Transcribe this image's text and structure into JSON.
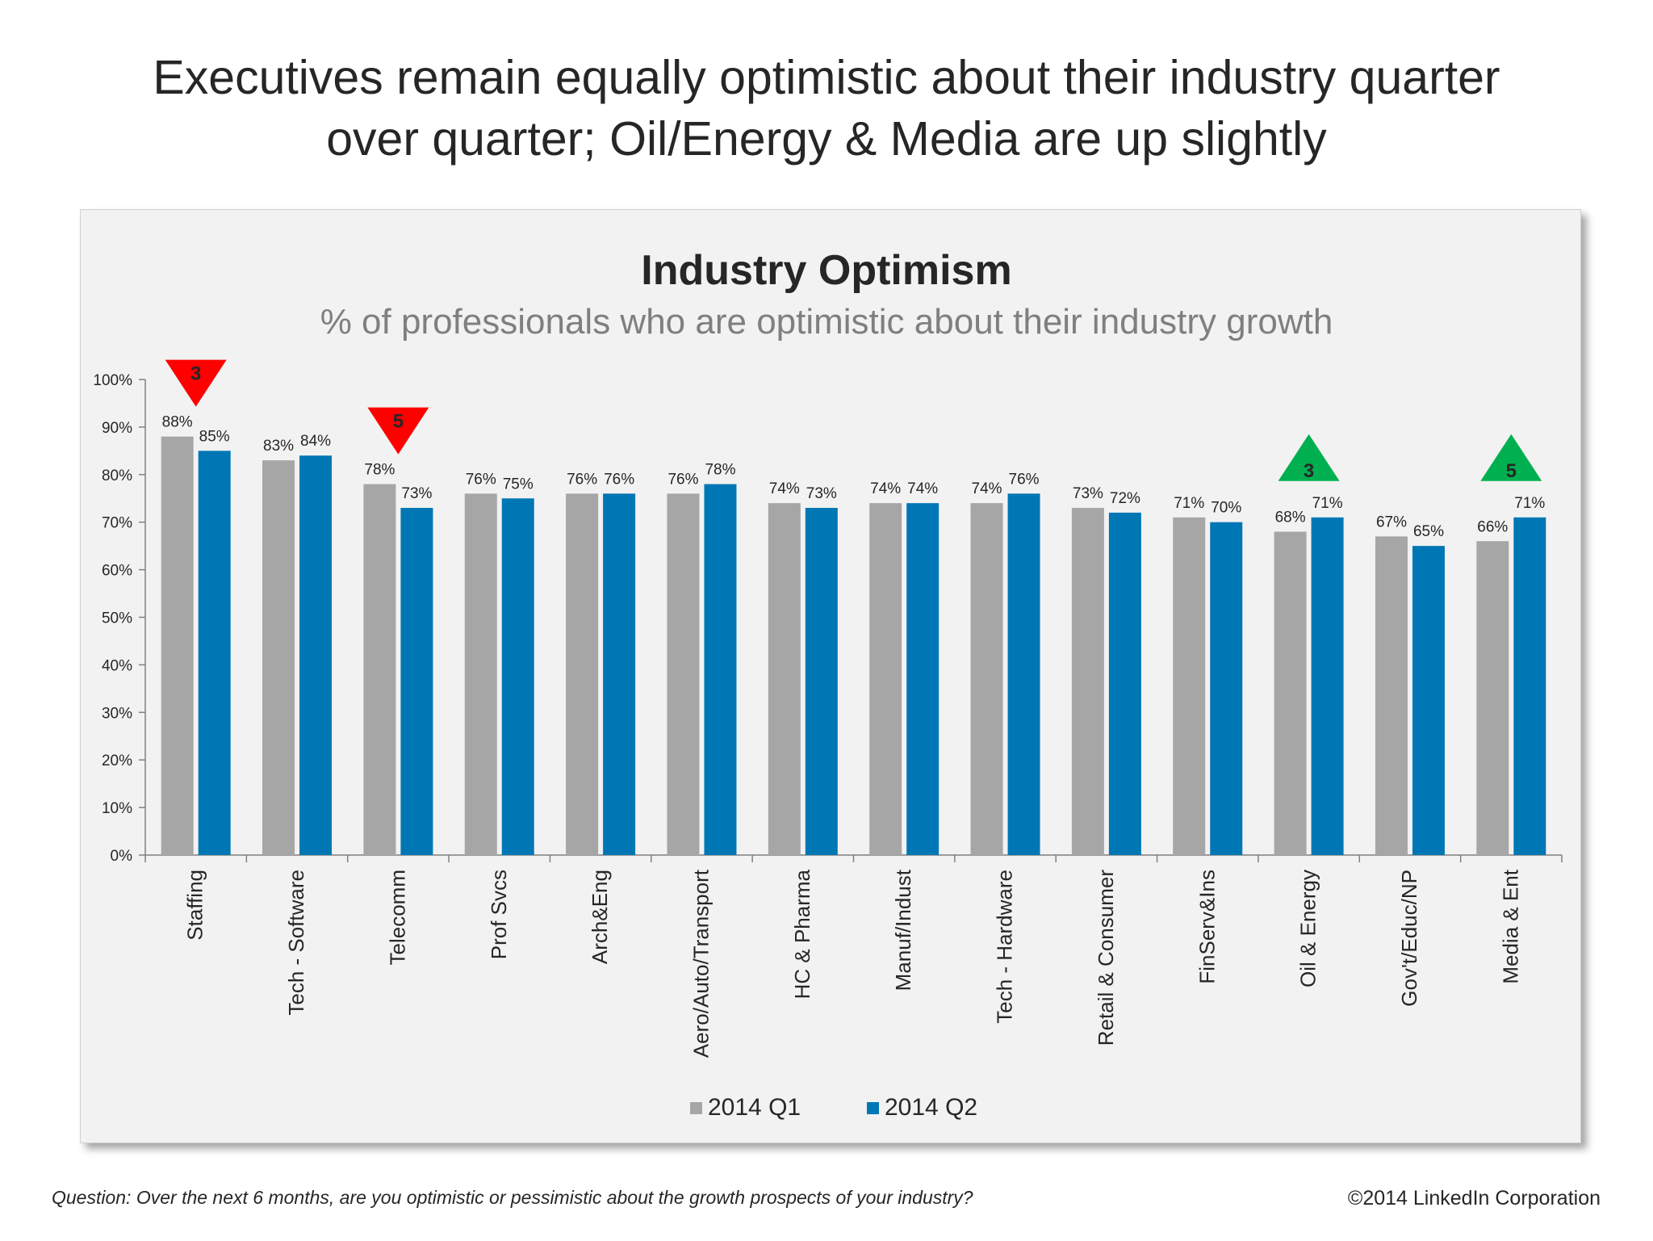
{
  "headline": {
    "line1": "Executives remain equally optimistic about their industry quarter",
    "line2": "over quarter; Oil/Energy & Media are up slightly"
  },
  "chart_data": {
    "type": "bar",
    "title": "Industry Optimism",
    "subtitle": "% of professionals who are optimistic about their industry growth",
    "categories": [
      "Staffing",
      "Tech - Software",
      "Telecomm",
      "Prof Svcs",
      "Arch&Eng",
      "Aero/Auto/Transport",
      "HC & Pharma",
      "Manuf/Indust",
      "Tech - Hardware",
      "Retail & Consumer",
      "FinServ&Ins",
      "Oil & Energy",
      "Gov't/Educ/NP",
      "Media & Ent"
    ],
    "series": [
      {
        "name": "2014 Q1",
        "color": "#a6a6a6",
        "values": [
          88,
          83,
          78,
          76,
          76,
          76,
          74,
          74,
          74,
          73,
          71,
          68,
          67,
          66
        ],
        "labels": [
          "88%",
          "83%",
          "78%",
          "76%",
          "76%",
          "76%",
          "74%",
          "74%",
          "74%",
          "73%",
          "71%",
          "68%",
          "67%",
          "66%"
        ]
      },
      {
        "name": "2014 Q2",
        "color": "#0077b5",
        "values": [
          85,
          84,
          73,
          75,
          76,
          78,
          73,
          74,
          76,
          72,
          70,
          71,
          65,
          71
        ],
        "labels": [
          "85%",
          "84%",
          "73%",
          "75%",
          "76%",
          "78%",
          "73%",
          "74%",
          "76%",
          "72%",
          "70%",
          "71%",
          "65%",
          "71%"
        ]
      }
    ],
    "yticks": [
      "0%",
      "10%",
      "20%",
      "30%",
      "40%",
      "50%",
      "60%",
      "70%",
      "80%",
      "90%",
      "100%"
    ],
    "ylim": [
      0,
      100
    ],
    "legend": "bottom-center",
    "annotations": [
      {
        "category": "Staffing",
        "direction": "down",
        "value": "3",
        "color": "#ff0000"
      },
      {
        "category": "Telecomm",
        "direction": "down",
        "value": "5",
        "color": "#ff0000"
      },
      {
        "category": "Oil & Energy",
        "direction": "up",
        "value": "3",
        "color": "#00b050"
      },
      {
        "category": "Media & Ent",
        "direction": "up",
        "value": "5",
        "color": "#00b050"
      }
    ]
  },
  "footer": {
    "question": "Question: Over the next 6 months, are you optimistic or pessimistic about the growth prospects of your industry?",
    "copyright": "©2014 LinkedIn Corporation"
  }
}
